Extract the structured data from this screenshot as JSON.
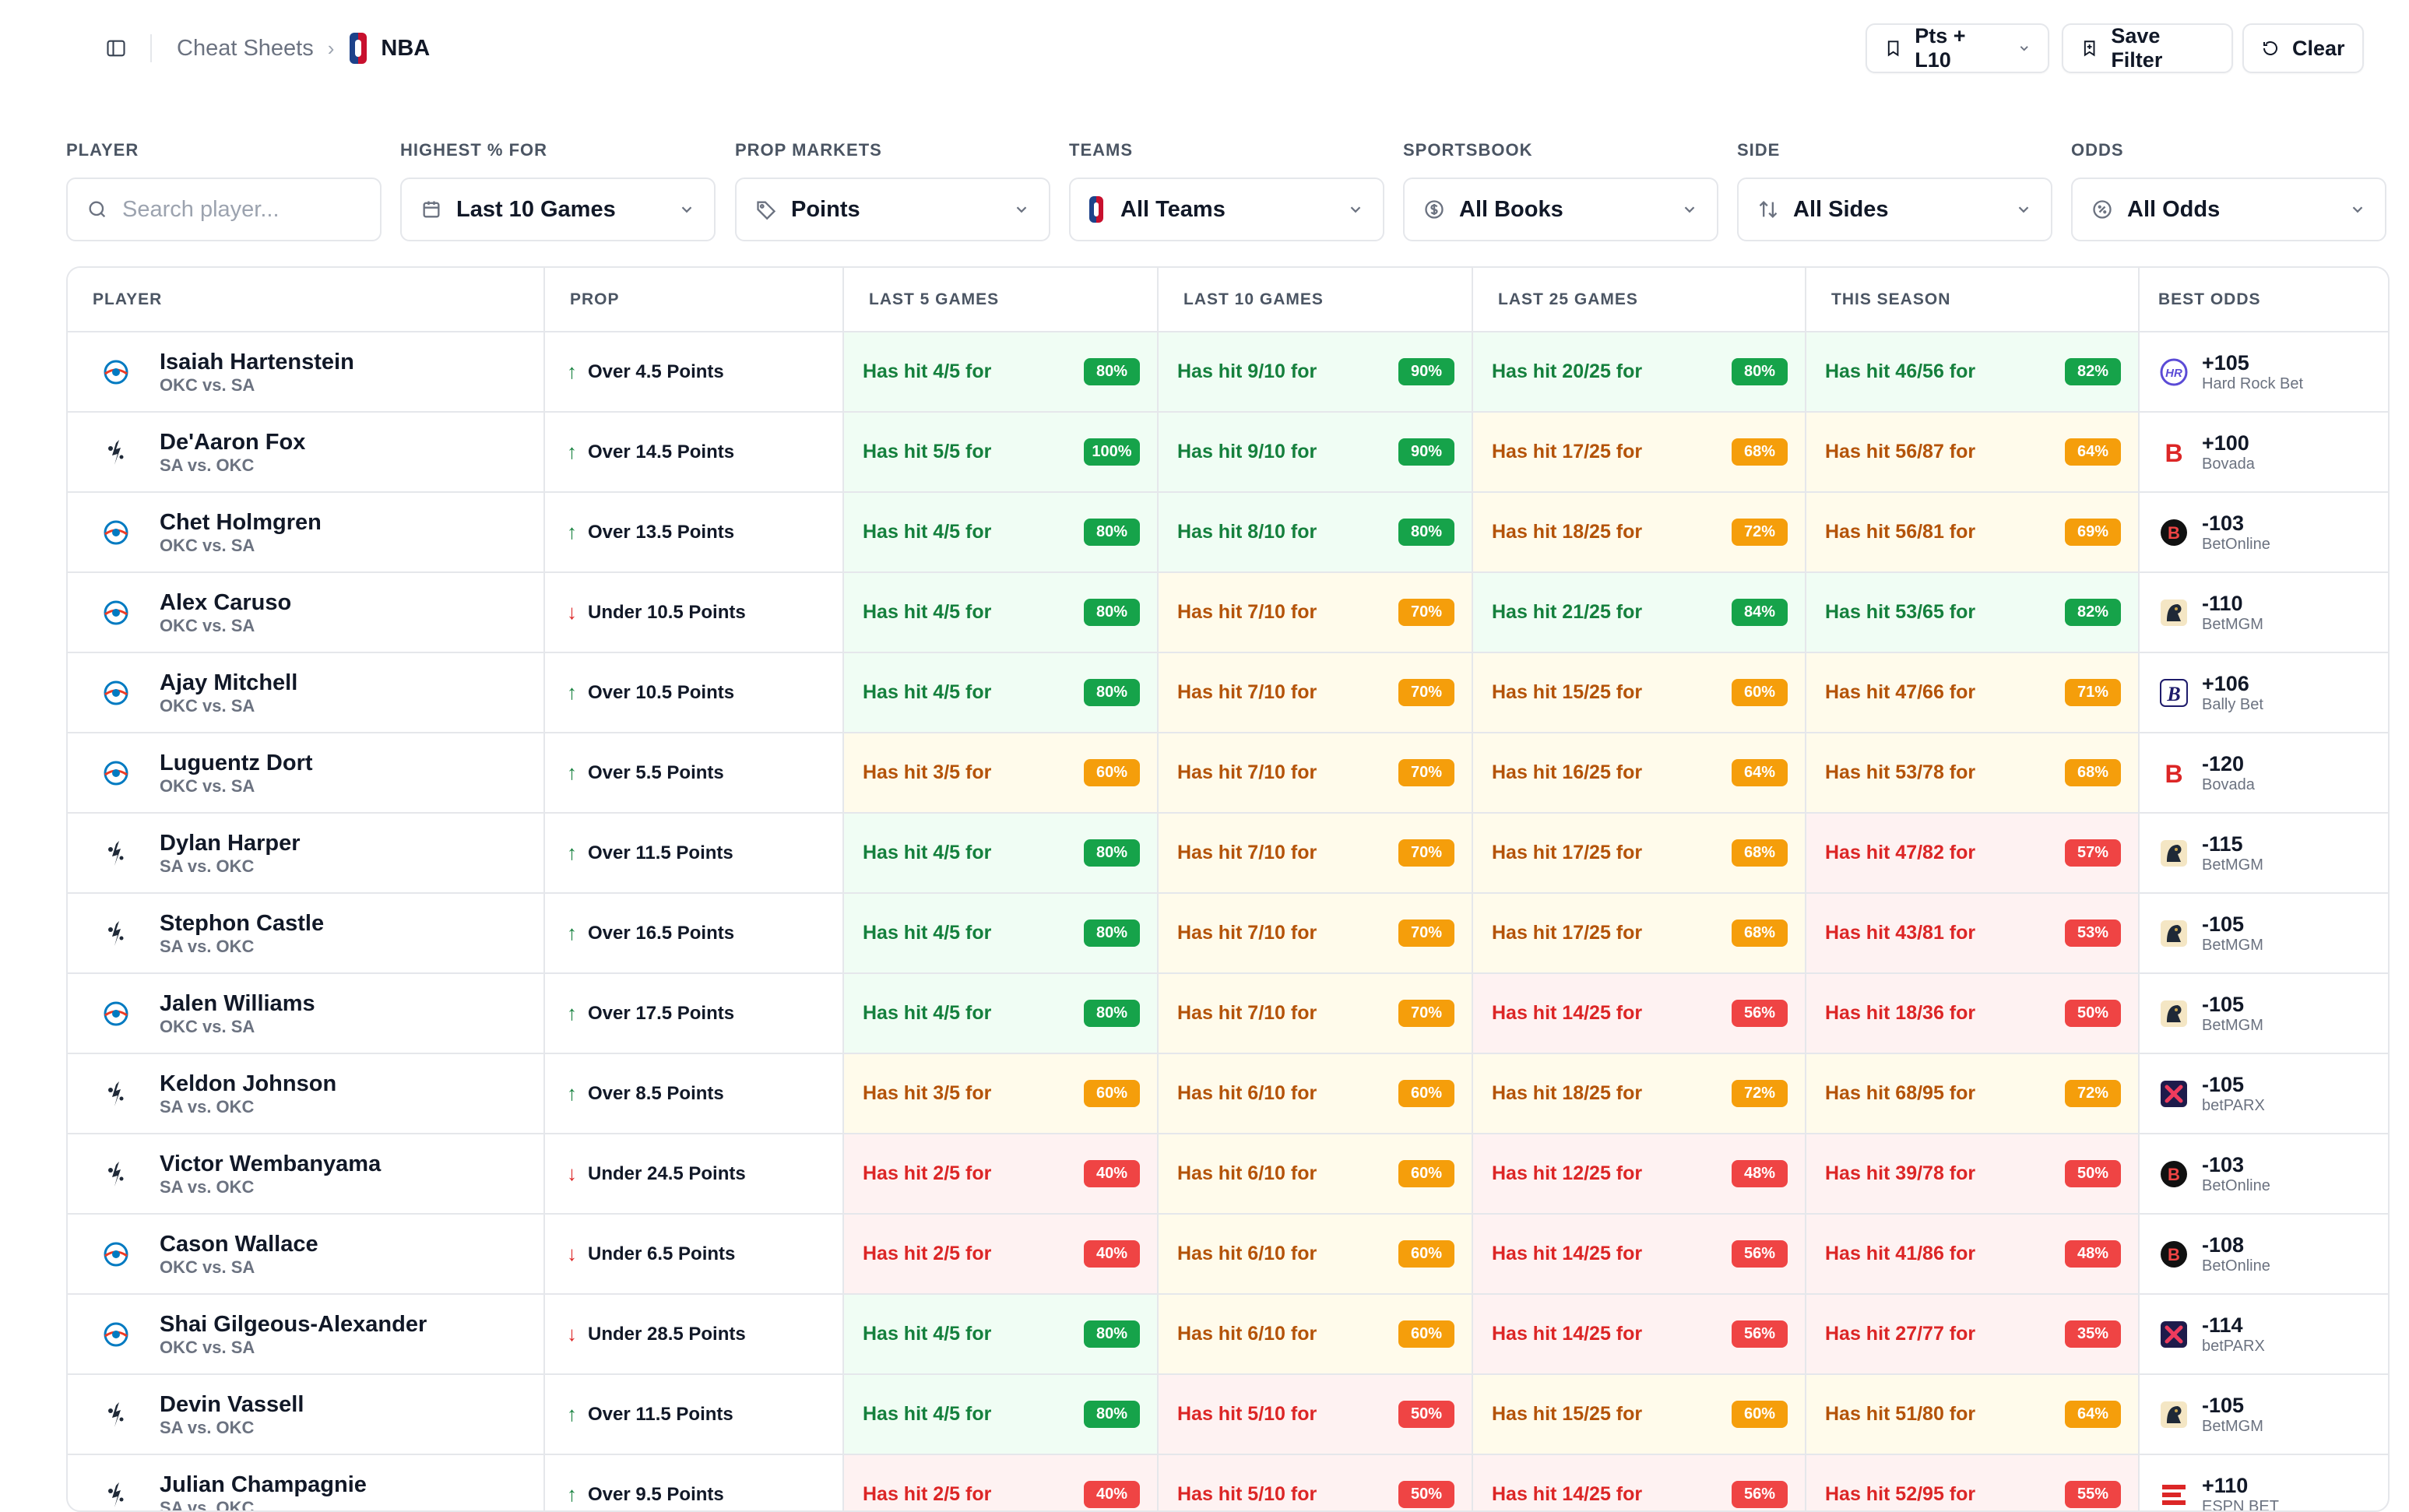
{
  "breadcrumb": {
    "parent": "Cheat Sheets",
    "current": "NBA"
  },
  "top_buttons": {
    "preset": "Pts + L10",
    "save": "Save Filter",
    "clear": "Clear"
  },
  "filters": {
    "player": {
      "label": "PLAYER",
      "placeholder": "Search player..."
    },
    "highest": {
      "label": "HIGHEST % FOR",
      "value": "Last 10 Games"
    },
    "markets": {
      "label": "PROP MARKETS",
      "value": "Points"
    },
    "teams": {
      "label": "TEAMS",
      "value": "All Teams"
    },
    "book": {
      "label": "SPORTSBOOK",
      "value": "All Books"
    },
    "side": {
      "label": "SIDE",
      "value": "All Sides"
    },
    "odds": {
      "label": "ODDS",
      "value": "All Odds"
    }
  },
  "table": {
    "headers": [
      "PLAYER",
      "PROP",
      "LAST 5 GAMES",
      "LAST 10 GAMES",
      "LAST 25 GAMES",
      "THIS SEASON",
      "BEST ODDS"
    ],
    "colors": {
      "green": "#16a34a",
      "amber": "#f59e0b",
      "red": "#ef4444",
      "okc_blue": "#007ac1",
      "okc_orange": "#ef3b24"
    },
    "rows": [
      {
        "team": "okc",
        "name": "Isaiah Hartenstein",
        "match": "OKC vs. SA",
        "dir": "up",
        "prop": "Over 4.5 Points",
        "l5": "Has hit 4/5 for",
        "l5p": "80%",
        "l5c": "g",
        "l10": "Has hit 9/10 for",
        "l10p": "90%",
        "l10c": "g",
        "l25": "Has hit 20/25 for",
        "l25p": "80%",
        "l25c": "g",
        "s": "Has hit 46/56 for",
        "sp": "82%",
        "sc": "g",
        "odds": "+105",
        "book": "Hard Rock Bet",
        "logo": "hardrock"
      },
      {
        "team": "sa",
        "name": "De'Aaron Fox",
        "match": "SA vs. OKC",
        "dir": "up",
        "prop": "Over 14.5 Points",
        "l5": "Has hit 5/5 for",
        "l5p": "100%",
        "l5c": "g",
        "l10": "Has hit 9/10 for",
        "l10p": "90%",
        "l10c": "g",
        "l25": "Has hit 17/25 for",
        "l25p": "68%",
        "l25c": "y",
        "s": "Has hit 56/87 for",
        "sp": "64%",
        "sc": "y",
        "odds": "+100",
        "book": "Bovada",
        "logo": "bovada"
      },
      {
        "team": "okc",
        "name": "Chet Holmgren",
        "match": "OKC vs. SA",
        "dir": "up",
        "prop": "Over 13.5 Points",
        "l5": "Has hit 4/5 for",
        "l5p": "80%",
        "l5c": "g",
        "l10": "Has hit 8/10 for",
        "l10p": "80%",
        "l10c": "g",
        "l25": "Has hit 18/25 for",
        "l25p": "72%",
        "l25c": "y",
        "s": "Has hit 56/81 for",
        "sp": "69%",
        "sc": "y",
        "odds": "-103",
        "book": "BetOnline",
        "logo": "betonline"
      },
      {
        "team": "okc",
        "name": "Alex Caruso",
        "match": "OKC vs. SA",
        "dir": "down",
        "prop": "Under 10.5 Points",
        "l5": "Has hit 4/5 for",
        "l5p": "80%",
        "l5c": "g",
        "l10": "Has hit 7/10 for",
        "l10p": "70%",
        "l10c": "y",
        "l25": "Has hit 21/25 for",
        "l25p": "84%",
        "l25c": "g",
        "s": "Has hit 53/65 for",
        "sp": "82%",
        "sc": "g",
        "odds": "-110",
        "book": "BetMGM",
        "logo": "betmgm"
      },
      {
        "team": "okc",
        "name": "Ajay Mitchell",
        "match": "OKC vs. SA",
        "dir": "up",
        "prop": "Over 10.5 Points",
        "l5": "Has hit 4/5 for",
        "l5p": "80%",
        "l5c": "g",
        "l10": "Has hit 7/10 for",
        "l10p": "70%",
        "l10c": "y",
        "l25": "Has hit 15/25 for",
        "l25p": "60%",
        "l25c": "y",
        "s": "Has hit 47/66 for",
        "sp": "71%",
        "sc": "y",
        "odds": "+106",
        "book": "Bally Bet",
        "logo": "bally"
      },
      {
        "team": "okc",
        "name": "Luguentz Dort",
        "match": "OKC vs. SA",
        "dir": "up",
        "prop": "Over 5.5 Points",
        "l5": "Has hit 3/5 for",
        "l5p": "60%",
        "l5c": "y",
        "l10": "Has hit 7/10 for",
        "l10p": "70%",
        "l10c": "y",
        "l25": "Has hit 16/25 for",
        "l25p": "64%",
        "l25c": "y",
        "s": "Has hit 53/78 for",
        "sp": "68%",
        "sc": "y",
        "odds": "-120",
        "book": "Bovada",
        "logo": "bovada"
      },
      {
        "team": "sa",
        "name": "Dylan Harper",
        "match": "SA vs. OKC",
        "dir": "up",
        "prop": "Over 11.5 Points",
        "l5": "Has hit 4/5 for",
        "l5p": "80%",
        "l5c": "g",
        "l10": "Has hit 7/10 for",
        "l10p": "70%",
        "l10c": "y",
        "l25": "Has hit 17/25 for",
        "l25p": "68%",
        "l25c": "y",
        "s": "Has hit 47/82 for",
        "sp": "57%",
        "sc": "r",
        "odds": "-115",
        "book": "BetMGM",
        "logo": "betmgm"
      },
      {
        "team": "sa",
        "name": "Stephon Castle",
        "match": "SA vs. OKC",
        "dir": "up",
        "prop": "Over 16.5 Points",
        "l5": "Has hit 4/5 for",
        "l5p": "80%",
        "l5c": "g",
        "l10": "Has hit 7/10 for",
        "l10p": "70%",
        "l10c": "y",
        "l25": "Has hit 17/25 for",
        "l25p": "68%",
        "l25c": "y",
        "s": "Has hit 43/81 for",
        "sp": "53%",
        "sc": "r",
        "odds": "-105",
        "book": "BetMGM",
        "logo": "betmgm"
      },
      {
        "team": "okc",
        "name": "Jalen Williams",
        "match": "OKC vs. SA",
        "dir": "up",
        "prop": "Over 17.5 Points",
        "l5": "Has hit 4/5 for",
        "l5p": "80%",
        "l5c": "g",
        "l10": "Has hit 7/10 for",
        "l10p": "70%",
        "l10c": "y",
        "l25": "Has hit 14/25 for",
        "l25p": "56%",
        "l25c": "r",
        "s": "Has hit 18/36 for",
        "sp": "50%",
        "sc": "r",
        "odds": "-105",
        "book": "BetMGM",
        "logo": "betmgm"
      },
      {
        "team": "sa",
        "name": "Keldon Johnson",
        "match": "SA vs. OKC",
        "dir": "up",
        "prop": "Over 8.5 Points",
        "l5": "Has hit 3/5 for",
        "l5p": "60%",
        "l5c": "y",
        "l10": "Has hit 6/10 for",
        "l10p": "60%",
        "l10c": "y",
        "l25": "Has hit 18/25 for",
        "l25p": "72%",
        "l25c": "y",
        "s": "Has hit 68/95 for",
        "sp": "72%",
        "sc": "y",
        "odds": "-105",
        "book": "betPARX",
        "logo": "betparx"
      },
      {
        "team": "sa",
        "name": "Victor Wembanyama",
        "match": "SA vs. OKC",
        "dir": "down",
        "prop": "Under 24.5 Points",
        "l5": "Has hit 2/5 for",
        "l5p": "40%",
        "l5c": "r",
        "l10": "Has hit 6/10 for",
        "l10p": "60%",
        "l10c": "y",
        "l25": "Has hit 12/25 for",
        "l25p": "48%",
        "l25c": "r",
        "s": "Has hit 39/78 for",
        "sp": "50%",
        "sc": "r",
        "odds": "-103",
        "book": "BetOnline",
        "logo": "betonline"
      },
      {
        "team": "okc",
        "name": "Cason Wallace",
        "match": "OKC vs. SA",
        "dir": "down",
        "prop": "Under 6.5 Points",
        "l5": "Has hit 2/5 for",
        "l5p": "40%",
        "l5c": "r",
        "l10": "Has hit 6/10 for",
        "l10p": "60%",
        "l10c": "y",
        "l25": "Has hit 14/25 for",
        "l25p": "56%",
        "l25c": "r",
        "s": "Has hit 41/86 for",
        "sp": "48%",
        "sc": "r",
        "odds": "-108",
        "book": "BetOnline",
        "logo": "betonline"
      },
      {
        "team": "okc",
        "name": "Shai Gilgeous-Alexander",
        "match": "OKC vs. SA",
        "dir": "down",
        "prop": "Under 28.5 Points",
        "l5": "Has hit 4/5 for",
        "l5p": "80%",
        "l5c": "g",
        "l10": "Has hit 6/10 for",
        "l10p": "60%",
        "l10c": "y",
        "l25": "Has hit 14/25 for",
        "l25p": "56%",
        "l25c": "r",
        "s": "Has hit 27/77 for",
        "sp": "35%",
        "sc": "r",
        "odds": "-114",
        "book": "betPARX",
        "logo": "betparx"
      },
      {
        "team": "sa",
        "name": "Devin Vassell",
        "match": "SA vs. OKC",
        "dir": "up",
        "prop": "Over 11.5 Points",
        "l5": "Has hit 4/5 for",
        "l5p": "80%",
        "l5c": "g",
        "l10": "Has hit 5/10 for",
        "l10p": "50%",
        "l10c": "r",
        "l25": "Has hit 15/25 for",
        "l25p": "60%",
        "l25c": "y",
        "s": "Has hit 51/80 for",
        "sp": "64%",
        "sc": "y",
        "odds": "-105",
        "book": "BetMGM",
        "logo": "betmgm"
      },
      {
        "team": "sa",
        "name": "Julian Champagnie",
        "match": "SA vs. OKC",
        "dir": "up",
        "prop": "Over 9.5 Points",
        "l5": "Has hit 2/5 for",
        "l5p": "40%",
        "l5c": "r",
        "l10": "Has hit 5/10 for",
        "l10p": "50%",
        "l10c": "r",
        "l25": "Has hit 14/25 for",
        "l25p": "56%",
        "l25c": "r",
        "s": "Has hit 52/95 for",
        "sp": "55%",
        "sc": "r",
        "odds": "+110",
        "book": "ESPN BET",
        "logo": "espnbet"
      }
    ]
  }
}
